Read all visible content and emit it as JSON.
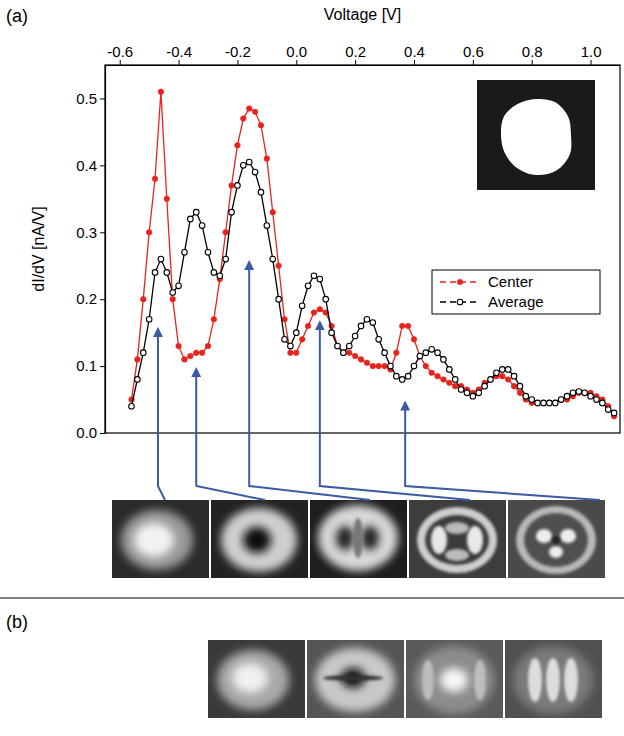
{
  "chart_data": {
    "type": "line",
    "x_label": "Voltage [V]",
    "y_label": "dI/dV [nA/V]",
    "xlim": [
      -0.65,
      1.1
    ],
    "ylim": [
      0,
      0.55
    ],
    "xticks": [
      -0.6,
      -0.4,
      -0.2,
      {
        "value": 0,
        "label": "0.0"
      },
      0.2,
      0.4,
      0.6,
      0.8,
      {
        "value": 1,
        "label": "1.0"
      }
    ],
    "yticks": [
      {
        "value": 0,
        "label": "0.0"
      },
      0.1,
      0.2,
      0.3,
      0.4,
      0.5
    ],
    "legend": "right",
    "grid": false,
    "x": [
      -0.56,
      -0.54,
      -0.52,
      -0.5,
      -0.48,
      -0.46,
      -0.44,
      -0.42,
      -0.4,
      -0.38,
      -0.36,
      -0.34,
      -0.32,
      -0.3,
      -0.28,
      -0.26,
      -0.24,
      -0.22,
      -0.2,
      -0.18,
      -0.16,
      -0.14,
      -0.12,
      -0.1,
      -0.08,
      -0.06,
      -0.04,
      -0.02,
      0,
      0.02,
      0.04,
      0.06,
      0.08,
      0.1,
      0.12,
      0.14,
      0.16,
      0.18,
      0.2,
      0.22,
      0.24,
      0.26,
      0.28,
      0.3,
      0.32,
      0.34,
      0.36,
      0.38,
      0.4,
      0.42,
      0.44,
      0.46,
      0.48,
      0.5,
      0.52,
      0.54,
      0.56,
      0.58,
      0.6,
      0.62,
      0.64,
      0.66,
      0.68,
      0.7,
      0.72,
      0.74,
      0.76,
      0.78,
      0.8,
      0.82,
      0.84,
      0.86,
      0.88,
      0.9,
      0.92,
      0.94,
      0.96,
      0.98,
      1,
      1.02,
      1.04,
      1.06,
      1.08
    ],
    "series": [
      {
        "name": "Center",
        "color": "#e8231c",
        "marker": "circle",
        "line_style": "solid",
        "values": [
          0.05,
          0.11,
          0.2,
          0.3,
          0.38,
          0.51,
          0.35,
          0.2,
          0.13,
          0.11,
          0.115,
          0.12,
          0.12,
          0.13,
          0.17,
          0.23,
          0.3,
          0.37,
          0.43,
          0.47,
          0.485,
          0.48,
          0.46,
          0.41,
          0.33,
          0.25,
          0.17,
          0.12,
          0.12,
          0.14,
          0.16,
          0.18,
          0.185,
          0.18,
          0.16,
          0.13,
          0.12,
          0.12,
          0.115,
          0.11,
          0.105,
          0.1,
          0.1,
          0.1,
          0.095,
          0.12,
          0.16,
          0.16,
          0.14,
          0.115,
          0.1,
          0.09,
          0.085,
          0.08,
          0.075,
          0.07,
          0.07,
          0.065,
          0.06,
          0.065,
          0.075,
          0.08,
          0.085,
          0.085,
          0.08,
          0.07,
          0.06,
          0.05,
          0.045,
          0.045,
          0.045,
          0.045,
          0.045,
          0.05,
          0.05,
          0.055,
          0.06,
          0.06,
          0.06,
          0.055,
          0.05,
          0.04,
          0.025
        ]
      },
      {
        "name": "Average",
        "color": "#000000",
        "marker": "open-circle",
        "line_style": "solid",
        "values": [
          0.04,
          0.08,
          0.12,
          0.17,
          0.24,
          0.26,
          0.24,
          0.21,
          0.22,
          0.27,
          0.32,
          0.33,
          0.31,
          0.27,
          0.24,
          0.235,
          0.26,
          0.33,
          0.37,
          0.4,
          0.405,
          0.39,
          0.36,
          0.31,
          0.26,
          0.2,
          0.14,
          0.13,
          0.15,
          0.19,
          0.22,
          0.235,
          0.23,
          0.2,
          0.15,
          0.13,
          0.12,
          0.13,
          0.145,
          0.16,
          0.17,
          0.165,
          0.14,
          0.12,
          0.1,
          0.085,
          0.08,
          0.085,
          0.1,
          0.115,
          0.12,
          0.125,
          0.12,
          0.11,
          0.095,
          0.08,
          0.065,
          0.06,
          0.055,
          0.06,
          0.07,
          0.08,
          0.09,
          0.095,
          0.095,
          0.085,
          0.07,
          0.055,
          0.05,
          0.045,
          0.045,
          0.045,
          0.045,
          0.05,
          0.055,
          0.06,
          0.062,
          0.06,
          0.055,
          0.05,
          0.045,
          0.035,
          0.03
        ]
      }
    ],
    "maps": [
      {
        "voltage": -0.47,
        "dIdV": 0.16
      },
      {
        "voltage": -0.34,
        "dIdV": 0.1
      },
      {
        "voltage": -0.16,
        "dIdV": 0.26
      },
      {
        "voltage": 0.08,
        "dIdV": 0.17
      },
      {
        "voltage": 0.37,
        "dIdV": 0.05
      }
    ],
    "annotations": [
      {
        "text": "(a)"
      },
      {
        "text": "(b)"
      }
    ]
  }
}
